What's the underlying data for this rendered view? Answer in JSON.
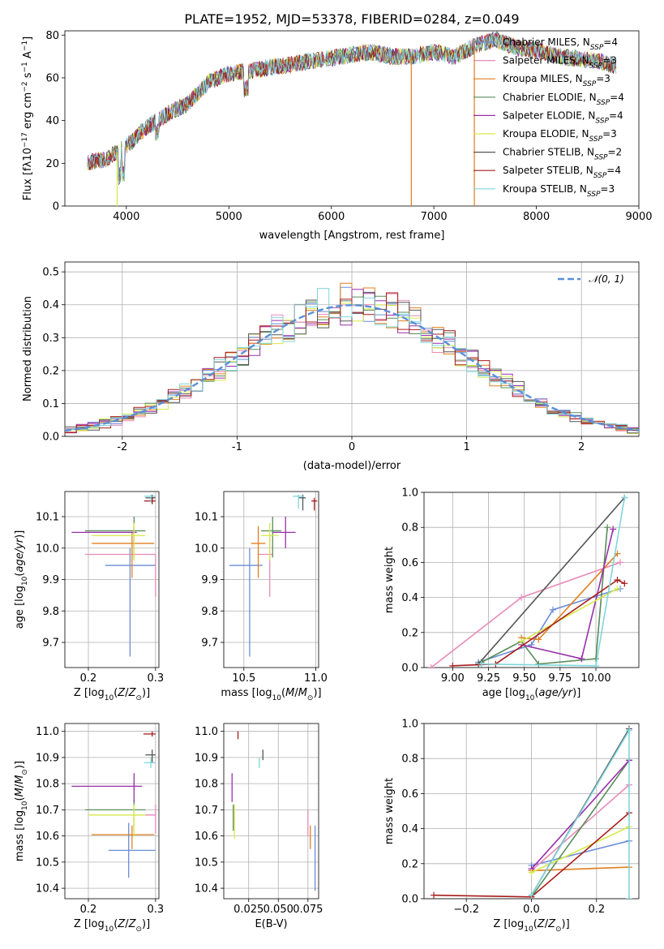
{
  "title": "PLATE=1952, MJD=53378, FIBERID=0284, z=0.049",
  "colors": {
    "Chabrier MILES": "#6a8cd8",
    "Salpeter MILES": "#e98ab8",
    "Kroupa MILES": "#e07f1e",
    "Chabrier ELODIE": "#5a8c5a",
    "Salpeter ELODIE": "#9a2eac",
    "Kroupa ELODIE": "#d6ea48",
    "Chabrier STELIB": "#555555",
    "Salpeter STELIB": "#a81c1c",
    "Kroupa STELIB": "#7fd6de"
  },
  "legend_spectrum": [
    {
      "model": "Chabrier MILES",
      "label": "Chabrier MILES, N",
      "n": "4"
    },
    {
      "model": "Salpeter MILES",
      "label": "Salpeter MILES, N",
      "n": "3"
    },
    {
      "model": "Kroupa MILES",
      "label": "Kroupa MILES, N",
      "n": "3"
    },
    {
      "model": "Chabrier ELODIE",
      "label": "Chabrier ELODIE, N",
      "n": "4"
    },
    {
      "model": "Salpeter ELODIE",
      "label": "Salpeter ELODIE, N",
      "n": "4"
    },
    {
      "model": "Kroupa ELODIE",
      "label": "Kroupa ELODIE, N",
      "n": "3"
    },
    {
      "model": "Chabrier STELIB",
      "label": "Chabrier STELIB, N",
      "n": "2"
    },
    {
      "model": "Salpeter STELIB",
      "label": "Salpeter STELIB, N",
      "n": "4"
    },
    {
      "model": "Kroupa STELIB",
      "label": "Kroupa STELIB, N",
      "n": "3"
    }
  ],
  "legend_sub": "SSP",
  "legend_hist": "𝒩(0, 1)",
  "chart_data": [
    {
      "id": "spectrum",
      "type": "line",
      "xlabel": "wavelength [Angstrom, rest frame]",
      "ylabel": "Flux [f",
      "ylim": [
        0,
        82
      ],
      "xlim": [
        3400,
        9000
      ],
      "xticks": [
        4000,
        5000,
        6000,
        7000,
        8000,
        9000
      ],
      "yticks": [
        0,
        20,
        40,
        60,
        80
      ],
      "x": [
        3600,
        3800,
        4000,
        4200,
        4400,
        4600,
        4800,
        5000,
        5200,
        5400,
        5600,
        5800,
        6000,
        6200,
        6400,
        6600,
        6800,
        7000,
        7200,
        7400,
        7600,
        7800,
        8000,
        8200,
        8400,
        8600,
        8800
      ],
      "y": [
        20,
        22,
        28,
        37,
        43,
        48,
        58,
        62,
        63,
        65,
        66,
        68,
        69,
        71,
        72,
        70,
        70,
        72,
        70,
        75,
        78,
        74,
        73,
        70,
        69,
        68,
        65
      ],
      "drops": [
        {
          "model": "Kroupa ELODIE",
          "x": 3910
        },
        {
          "model": "Kroupa MILES",
          "x": 6780
        },
        {
          "model": "Kroupa MILES",
          "x": 7395
        }
      ]
    },
    {
      "id": "residuals",
      "type": "histogram",
      "xlabel": "(data-model)/error",
      "ylabel": "Normed distribution",
      "xlim": [
        -2.5,
        2.5
      ],
      "ylim": [
        0,
        0.53
      ],
      "xticks": [
        -2,
        -1,
        0,
        1,
        2
      ],
      "yticks": [
        0.0,
        0.1,
        0.2,
        0.3,
        0.4,
        0.5
      ],
      "bin_width": 0.1,
      "reference": "normal(0,1)"
    },
    {
      "id": "age-vs-Z",
      "type": "errorbar",
      "xlabel": "Z [log",
      "ylabel": "age  [log",
      "xlim": [
        0.165,
        0.305
      ],
      "ylim": [
        9.62,
        10.18
      ],
      "xticks": [
        0.2,
        0.3
      ],
      "xtick_labels": [
        "0.2",
        "0.3"
      ],
      "yticks": [
        9.7,
        9.8,
        9.9,
        10.0,
        10.1
      ],
      "points": [
        {
          "model": "Chabrier MILES",
          "x": 0.262,
          "xlo": 0.225,
          "xhi": 0.3,
          "y": 9.945,
          "ylo": 9.655,
          "yhi": 10.0
        },
        {
          "model": "Salpeter MILES",
          "x": 0.3,
          "xlo": 0.195,
          "xhi": 0.3,
          "y": 9.98,
          "ylo": 9.845,
          "yhi": 9.98
        },
        {
          "model": "Kroupa MILES",
          "x": 0.265,
          "xlo": 0.205,
          "xhi": 0.298,
          "y": 10.015,
          "ylo": 9.905,
          "yhi": 10.05
        },
        {
          "model": "Chabrier ELODIE",
          "x": 0.268,
          "xlo": 0.195,
          "xhi": 0.285,
          "y": 10.055,
          "ylo": 9.965,
          "yhi": 10.1
        },
        {
          "model": "Salpeter ELODIE",
          "x": 0.268,
          "xlo": 0.175,
          "xhi": 0.272,
          "y": 10.05,
          "ylo": 10.0,
          "yhi": 10.07
        },
        {
          "model": "Kroupa ELODIE",
          "x": 0.268,
          "xlo": 0.205,
          "xhi": 0.285,
          "y": 10.04,
          "ylo": 9.96,
          "yhi": 10.08
        },
        {
          "model": "Chabrier STELIB",
          "x": 0.295,
          "xlo": 0.285,
          "xhi": 0.3,
          "y": 10.16,
          "ylo": 10.14,
          "yhi": 10.17
        },
        {
          "model": "Salpeter STELIB",
          "x": 0.295,
          "xlo": 0.283,
          "xhi": 0.3,
          "y": 10.15,
          "ylo": 10.14,
          "yhi": 10.165
        },
        {
          "model": "Kroupa STELIB",
          "x": 0.293,
          "xlo": 0.283,
          "xhi": 0.3,
          "y": 10.165,
          "ylo": 10.145,
          "yhi": 10.17
        }
      ]
    },
    {
      "id": "age-vs-mass",
      "type": "errorbar",
      "xlabel": "mass [log",
      "ylabel": "",
      "xlim": [
        10.36,
        11.02
      ],
      "ylim": [
        9.62,
        10.18
      ],
      "xticks": [
        10.5,
        11.0
      ],
      "xtick_labels": [
        "10.5",
        "11.0"
      ],
      "yticks": [
        9.7,
        9.8,
        9.9,
        10.0,
        10.1
      ],
      "points": [
        {
          "model": "Chabrier MILES",
          "x": 10.54,
          "xlo": 10.4,
          "xhi": 10.63,
          "y": 9.945,
          "ylo": 9.655,
          "yhi": 10.0
        },
        {
          "model": "Salpeter MILES",
          "x": 10.68,
          "xlo": 10.6,
          "xhi": 10.7,
          "y": 9.98,
          "ylo": 9.845,
          "yhi": 10.04
        },
        {
          "model": "Kroupa MILES",
          "x": 10.6,
          "xlo": 10.55,
          "xhi": 10.65,
          "y": 10.015,
          "ylo": 9.905,
          "yhi": 10.07
        },
        {
          "model": "Chabrier ELODIE",
          "x": 10.7,
          "xlo": 10.62,
          "xhi": 10.76,
          "y": 10.055,
          "ylo": 9.97,
          "yhi": 10.1
        },
        {
          "model": "Salpeter ELODIE",
          "x": 10.79,
          "xlo": 10.7,
          "xhi": 10.86,
          "y": 10.05,
          "ylo": 10.0,
          "yhi": 10.1
        },
        {
          "model": "Kroupa ELODIE",
          "x": 10.68,
          "xlo": 10.62,
          "xhi": 10.74,
          "y": 10.04,
          "ylo": 9.96,
          "yhi": 10.08
        },
        {
          "model": "Chabrier STELIB",
          "x": 10.91,
          "xlo": 10.88,
          "xhi": 10.93,
          "y": 10.16,
          "ylo": 10.12,
          "yhi": 10.17
        },
        {
          "model": "Salpeter STELIB",
          "x": 10.99,
          "xlo": 10.97,
          "xhi": 11.01,
          "y": 10.15,
          "ylo": 10.12,
          "yhi": 10.16
        },
        {
          "model": "Kroupa STELIB",
          "x": 10.88,
          "xlo": 10.84,
          "xhi": 10.92,
          "y": 10.165,
          "ylo": 10.125,
          "yhi": 10.17
        }
      ]
    },
    {
      "id": "massweight-vs-age",
      "type": "line",
      "xlabel": "age  [log",
      "ylabel": "mass weight",
      "xlim": [
        8.8,
        10.3
      ],
      "ylim": [
        0,
        1.0
      ],
      "xticks": [
        9.0,
        9.25,
        9.5,
        9.75,
        10.0
      ],
      "xtick_labels": [
        "9.00",
        "9.25",
        "9.50",
        "9.75",
        "10.00"
      ],
      "yticks": [
        0.0,
        0.2,
        0.4,
        0.6,
        0.8,
        1.0
      ],
      "series": [
        {
          "model": "Chabrier MILES",
          "x": [
            9.18,
            9.55,
            9.7,
            10.17
          ],
          "y": [
            0.03,
            0.13,
            0.33,
            0.45
          ]
        },
        {
          "model": "Salpeter MILES",
          "x": [
            8.85,
            9.48,
            10.17
          ],
          "y": [
            0.0,
            0.4,
            0.6
          ]
        },
        {
          "model": "Kroupa MILES",
          "x": [
            9.48,
            9.6,
            10.15
          ],
          "y": [
            0.17,
            0.16,
            0.65
          ]
        },
        {
          "model": "Chabrier ELODIE",
          "x": [
            9.2,
            9.48,
            9.6,
            10.0,
            10.08
          ],
          "y": [
            0.03,
            0.15,
            0.02,
            0.05,
            0.8
          ]
        },
        {
          "model": "Salpeter ELODIE",
          "x": [
            9.48,
            9.9,
            10.12
          ],
          "y": [
            0.13,
            0.05,
            0.79
          ]
        },
        {
          "model": "Kroupa ELODIE",
          "x": [
            9.48,
            10.15
          ],
          "y": [
            0.15,
            0.45
          ]
        },
        {
          "model": "Chabrier STELIB",
          "x": [
            9.18,
            10.2
          ],
          "y": [
            0.02,
            0.97
          ]
        },
        {
          "model": "Salpeter STELIB",
          "x": [
            9.0,
            9.3,
            10.15,
            10.2
          ],
          "y": [
            0.01,
            0.02,
            0.5,
            0.48
          ]
        },
        {
          "model": "Kroupa STELIB",
          "x": [
            9.2,
            10.0,
            10.2
          ],
          "y": [
            0.02,
            0.01,
            0.97
          ]
        }
      ]
    },
    {
      "id": "mass-vs-Z",
      "type": "errorbar",
      "xlabel": "Z [log",
      "ylabel": "mass [log",
      "xlim": [
        0.165,
        0.305
      ],
      "ylim": [
        10.36,
        11.03
      ],
      "xticks": [
        0.2,
        0.3
      ],
      "xtick_labels": [
        "0.2",
        "0.3"
      ],
      "yticks": [
        10.4,
        10.5,
        10.6,
        10.7,
        10.8,
        10.9,
        11.0
      ],
      "points": [
        {
          "model": "Chabrier MILES",
          "x": 0.26,
          "xlo": 0.23,
          "xhi": 0.3,
          "y": 10.545,
          "ylo": 10.44,
          "yhi": 10.65
        },
        {
          "model": "Salpeter MILES",
          "x": 0.3,
          "xlo": 0.27,
          "xhi": 0.3,
          "y": 10.68,
          "ylo": 10.61,
          "yhi": 10.72
        },
        {
          "model": "Kroupa MILES",
          "x": 0.265,
          "xlo": 0.205,
          "xhi": 0.298,
          "y": 10.605,
          "ylo": 10.55,
          "yhi": 10.64
        },
        {
          "model": "Chabrier ELODIE",
          "x": 0.268,
          "xlo": 0.195,
          "xhi": 0.285,
          "y": 10.7,
          "ylo": 10.62,
          "yhi": 10.74
        },
        {
          "model": "Salpeter ELODIE",
          "x": 0.268,
          "xlo": 0.175,
          "xhi": 0.28,
          "y": 10.79,
          "ylo": 10.73,
          "yhi": 10.84
        },
        {
          "model": "Kroupa ELODIE",
          "x": 0.268,
          "xlo": 0.2,
          "xhi": 0.285,
          "y": 10.68,
          "ylo": 10.6,
          "yhi": 10.72
        },
        {
          "model": "Chabrier STELIB",
          "x": 0.295,
          "xlo": 0.285,
          "xhi": 0.3,
          "y": 10.91,
          "ylo": 10.88,
          "yhi": 10.93
        },
        {
          "model": "Salpeter STELIB",
          "x": 0.295,
          "xlo": 0.282,
          "xhi": 0.3,
          "y": 10.99,
          "ylo": 10.98,
          "yhi": 11.0
        },
        {
          "model": "Kroupa STELIB",
          "x": 0.293,
          "xlo": 0.283,
          "xhi": 0.3,
          "y": 10.88,
          "ylo": 10.86,
          "yhi": 10.9
        }
      ]
    },
    {
      "id": "mass-vs-EBV",
      "type": "errorbar",
      "xlabel": "E(B-V)",
      "ylabel": "",
      "xlim": [
        0.004,
        0.084
      ],
      "ylim": [
        10.36,
        11.03
      ],
      "xticks": [
        0.025,
        0.05,
        0.075
      ],
      "xtick_labels": [
        "0.025",
        "0.050",
        "0.075"
      ],
      "yticks": [
        10.4,
        10.5,
        10.6,
        10.7,
        10.8,
        10.9,
        11.0
      ],
      "points": [
        {
          "model": "Chabrier MILES",
          "x": 0.081,
          "y": 10.545,
          "ylo": 10.39,
          "yhi": 10.64
        },
        {
          "model": "Salpeter MILES",
          "x": 0.075,
          "y": 10.68,
          "ylo": 10.6,
          "yhi": 10.7
        },
        {
          "model": "Kroupa MILES",
          "x": 0.077,
          "y": 10.605,
          "ylo": 10.55,
          "yhi": 10.64
        },
        {
          "model": "Chabrier ELODIE",
          "x": 0.012,
          "y": 10.7,
          "ylo": 10.62,
          "yhi": 10.72
        },
        {
          "model": "Salpeter ELODIE",
          "x": 0.011,
          "y": 10.79,
          "ylo": 10.73,
          "yhi": 10.84
        },
        {
          "model": "Kroupa ELODIE",
          "x": 0.013,
          "y": 10.68,
          "ylo": 10.59,
          "yhi": 10.72
        },
        {
          "model": "Chabrier STELIB",
          "x": 0.037,
          "y": 10.91,
          "ylo": 10.89,
          "yhi": 10.93
        },
        {
          "model": "Salpeter STELIB",
          "x": 0.016,
          "y": 10.99,
          "ylo": 10.97,
          "yhi": 11.0
        },
        {
          "model": "Kroupa STELIB",
          "x": 0.034,
          "y": 10.88,
          "ylo": 10.86,
          "yhi": 10.9
        }
      ]
    },
    {
      "id": "massweight-vs-Z",
      "type": "line",
      "xlabel": "Z [log",
      "ylabel": "mass weight",
      "xlim": [
        -0.33,
        0.33
      ],
      "ylim": [
        0,
        1.0
      ],
      "xticks": [
        -0.2,
        0.0,
        0.2
      ],
      "xtick_labels": [
        "−0.2",
        "0.0",
        "0.2"
      ],
      "yticks": [
        0.0,
        0.2,
        0.4,
        0.6,
        0.8,
        1.0
      ],
      "series": [
        {
          "model": "Chabrier MILES",
          "x": [
            0.0,
            0.3
          ],
          "y": [
            0.19,
            0.33
          ]
        },
        {
          "model": "Salpeter MILES",
          "x": [
            0.0,
            0.3
          ],
          "y": [
            0.16,
            0.65
          ]
        },
        {
          "model": "Kroupa MILES",
          "x": [
            0.0,
            0.3
          ],
          "y": [
            0.16,
            0.18
          ]
        },
        {
          "model": "Chabrier ELODIE",
          "x": [
            0.0,
            0.3
          ],
          "y": [
            0.01,
            0.79
          ]
        },
        {
          "model": "Salpeter ELODIE",
          "x": [
            0.0,
            0.3
          ],
          "y": [
            0.17,
            0.79
          ]
        },
        {
          "model": "Kroupa ELODIE",
          "x": [
            0.0,
            0.3
          ],
          "y": [
            0.15,
            0.41
          ]
        },
        {
          "model": "Chabrier STELIB",
          "x": [
            0.0,
            0.3
          ],
          "y": [
            0.02,
            0.97
          ]
        },
        {
          "model": "Salpeter STELIB",
          "x": [
            -0.3,
            0.0,
            0.3
          ],
          "y": [
            0.02,
            0.01,
            0.49
          ]
        },
        {
          "model": "Kroupa STELIB",
          "x": [
            0.0,
            0.3,
            0.3
          ],
          "y": [
            0.02,
            0.96,
            0.0
          ]
        }
      ]
    }
  ]
}
